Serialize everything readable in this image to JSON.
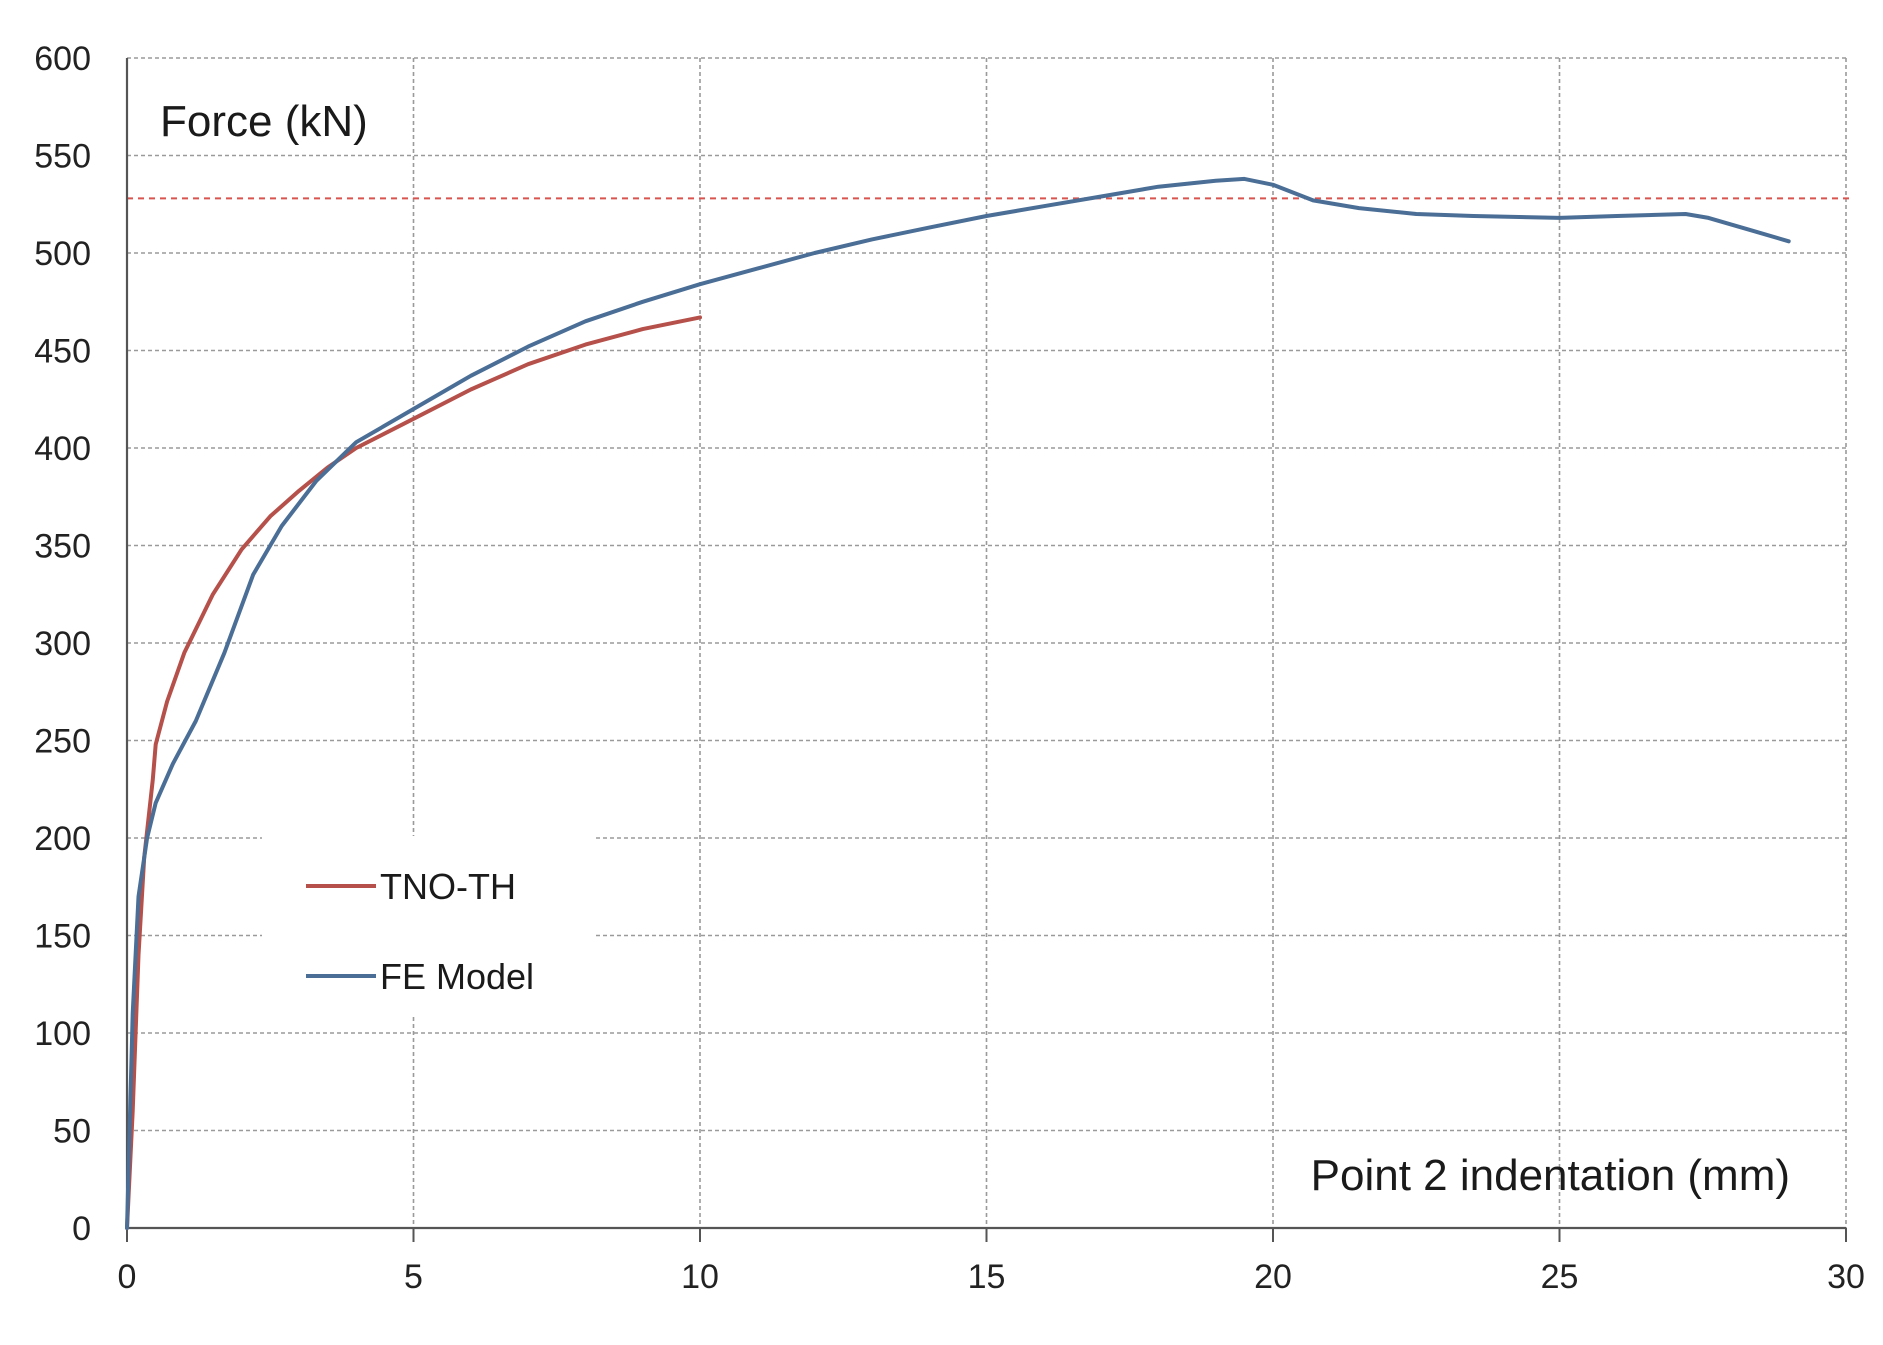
{
  "chart_data": {
    "type": "line",
    "title": "",
    "ylabel": "Force (kN)",
    "xlabel": "Point 2 indentation (mm)",
    "xlim": [
      0,
      30
    ],
    "ylim": [
      0,
      600
    ],
    "x_ticks": [
      0,
      5,
      10,
      15,
      20,
      25,
      30
    ],
    "y_ticks": [
      0,
      50,
      100,
      150,
      200,
      250,
      300,
      350,
      400,
      450,
      500,
      550,
      600
    ],
    "grid": true,
    "legend_position": "center-left",
    "reference_line": {
      "y": 528,
      "color": "#d9534f",
      "style": "dashed"
    },
    "series": [
      {
        "name": "TNO-TH",
        "color": "#b5504a",
        "points": [
          [
            0,
            0
          ],
          [
            0.1,
            60
          ],
          [
            0.2,
            140
          ],
          [
            0.3,
            190
          ],
          [
            0.45,
            230
          ],
          [
            0.5,
            248
          ],
          [
            0.7,
            270
          ],
          [
            1.0,
            295
          ],
          [
            1.5,
            325
          ],
          [
            2.0,
            348
          ],
          [
            2.5,
            365
          ],
          [
            3.0,
            378
          ],
          [
            3.5,
            390
          ],
          [
            4.0,
            400
          ],
          [
            5.0,
            415
          ],
          [
            6.0,
            430
          ],
          [
            7.0,
            443
          ],
          [
            8.0,
            453
          ],
          [
            9.0,
            461
          ],
          [
            10.0,
            467
          ]
        ]
      },
      {
        "name": "FE Model",
        "color": "#4a6e96",
        "points": [
          [
            0,
            0
          ],
          [
            0.1,
            110
          ],
          [
            0.2,
            170
          ],
          [
            0.35,
            200
          ],
          [
            0.5,
            218
          ],
          [
            0.8,
            238
          ],
          [
            1.2,
            260
          ],
          [
            1.7,
            295
          ],
          [
            2.2,
            335
          ],
          [
            2.7,
            360
          ],
          [
            3.3,
            383
          ],
          [
            4.0,
            403
          ],
          [
            5.0,
            420
          ],
          [
            6.0,
            437
          ],
          [
            7.0,
            452
          ],
          [
            8.0,
            465
          ],
          [
            9.0,
            475
          ],
          [
            10.0,
            484
          ],
          [
            11.0,
            492
          ],
          [
            12.0,
            500
          ],
          [
            13.0,
            507
          ],
          [
            14.0,
            513
          ],
          [
            15.0,
            519
          ],
          [
            16.0,
            524
          ],
          [
            17.0,
            529
          ],
          [
            18.0,
            534
          ],
          [
            19.0,
            537
          ],
          [
            19.5,
            538
          ],
          [
            20.0,
            535
          ],
          [
            20.7,
            527
          ],
          [
            21.5,
            523
          ],
          [
            22.5,
            520
          ],
          [
            23.5,
            519
          ],
          [
            25.0,
            518
          ],
          [
            26.0,
            519
          ],
          [
            27.2,
            520
          ],
          [
            27.6,
            518
          ],
          [
            28.3,
            512
          ],
          [
            29.0,
            506
          ]
        ]
      }
    ]
  }
}
